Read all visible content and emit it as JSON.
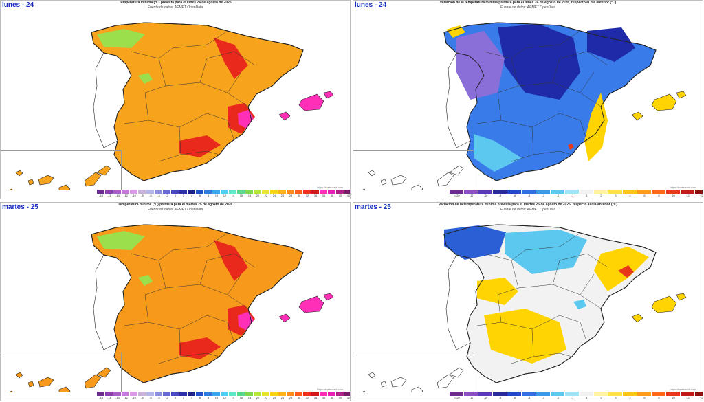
{
  "panels": [
    {
      "day_label": "lunes - 24",
      "title": "Temperatura mínima (°C) prevista para el lunes 24 de agosto de 2026",
      "subtitle": "Fuente de datos: AEMET OpenData",
      "credit": "https://meteored.com",
      "legend_ticks": [
        "-18",
        "-16",
        "-14",
        "-12",
        "-10",
        "-8",
        "-6",
        "-4",
        "-2",
        "0",
        "2",
        "4",
        "6",
        "8",
        "10",
        "12",
        "14",
        "16",
        "18",
        "20",
        "22",
        "24",
        "26",
        "28",
        "30",
        "32",
        "34",
        "36",
        "38",
        "40",
        "42",
        "44",
        "46"
      ],
      "palette": "absolute",
      "fill": "#f7a31c",
      "accents": [
        "#e8291c",
        "#ff2fb8",
        "#9be04c"
      ]
    },
    {
      "day_label": "lunes - 24",
      "title": "Variación de la temperatura mínima prevista para el lunes 24 de agosto de 2026, respecto al día anterior (°C)",
      "subtitle": "Fuente de datos: AEMET OpenData",
      "credit": "https://meteored.com",
      "legend_ticks": [
        "<-20",
        "-12",
        "-10",
        "-8",
        "-6",
        "-4",
        "-3",
        "-2",
        "-1",
        "1",
        "2",
        "3",
        "4",
        "6",
        "8",
        "10",
        "12",
        "+20"
      ],
      "palette": "variation",
      "fill": "#3a7bea",
      "accents": [
        "#1f2aa8",
        "#8a6fd8",
        "#ffd400"
      ]
    },
    {
      "day_label": "martes - 25",
      "title": "Temperatura mínima (°C) prevista para el martes 25 de agosto de 2026",
      "subtitle": "Fuente de datos: AEMET OpenData",
      "credit": "https://meteored.com",
      "legend_ticks": [
        "-18",
        "-16",
        "-14",
        "-12",
        "-10",
        "-8",
        "-6",
        "-4",
        "-2",
        "0",
        "2",
        "4",
        "6",
        "8",
        "10",
        "12",
        "14",
        "16",
        "18",
        "20",
        "22",
        "24",
        "26",
        "28",
        "30",
        "32",
        "34",
        "36",
        "38",
        "40",
        "42",
        "44",
        "46"
      ],
      "palette": "absolute",
      "fill": "#f79a1c",
      "accents": [
        "#e8291c",
        "#ff2fb8",
        "#9be04c"
      ]
    },
    {
      "day_label": "martes - 25",
      "title": "Variación de la temperatura mínima prevista para el martes 25 de agosto de 2026, respecto al día anterior (°C)",
      "subtitle": "Fuente de datos: AEMET OpenData",
      "credit": "https://meteored.com",
      "legend_ticks": [
        "<-20",
        "-12",
        "-10",
        "-8",
        "-6",
        "-4",
        "-3",
        "-2",
        "-1",
        "1",
        "2",
        "3",
        "4",
        "6",
        "8",
        "10",
        "12",
        "+20"
      ],
      "palette": "variation",
      "fill": "#f2f2f2",
      "accents": [
        "#2a5fd6",
        "#5cc8f0",
        "#ffd400"
      ]
    }
  ],
  "colors": {
    "absolute_scale": [
      "#6a2c91",
      "#8b3fb0",
      "#a95dc9",
      "#c47ad8",
      "#d99be6",
      "#c9b3d9",
      "#b5b5e8",
      "#8e8ee0",
      "#6a6ad6",
      "#4747c4",
      "#2e2ea8",
      "#1f1f8a",
      "#2050c8",
      "#2e7be0",
      "#3ba7ee",
      "#4fd0f2",
      "#5ee6c8",
      "#59d98a",
      "#7ed94c",
      "#b7e63a",
      "#e6e632",
      "#ffd21a",
      "#ffb31a",
      "#ff8c1a",
      "#ff5e1a",
      "#f0301a",
      "#d01a1a",
      "#ff2fb8",
      "#e61fb8",
      "#b01e8a",
      "#7a1a6a",
      "#a83a2a"
    ],
    "variation_scale": [
      "#6a2c91",
      "#8b50c4",
      "#5a3ab8",
      "#2a2a9a",
      "#2346c8",
      "#2f6fe0",
      "#3a9ae8",
      "#5cc8f0",
      "#9ee6f5",
      "#f2f2f2",
      "#fff3a0",
      "#ffe24a",
      "#ffc41a",
      "#ff9a1a",
      "#ff6a1a",
      "#e8381a",
      "#c01a1a",
      "#8a1010"
    ]
  }
}
